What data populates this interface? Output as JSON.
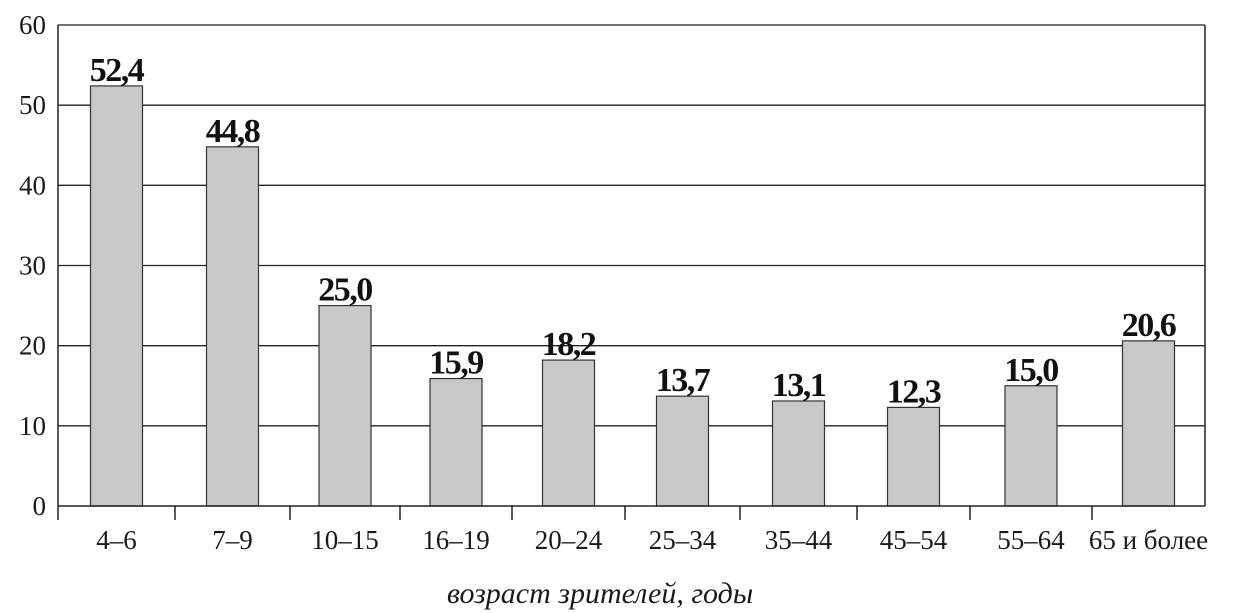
{
  "chart_data": {
    "type": "bar",
    "categories": [
      "4–6",
      "7–9",
      "10–15",
      "16–19",
      "20–24",
      "25–34",
      "35–44",
      "45–54",
      "55–64",
      "65 и более"
    ],
    "values": [
      52.4,
      44.8,
      25.0,
      15.9,
      18.2,
      13.7,
      13.1,
      12.3,
      15.0,
      20.6
    ],
    "value_labels": [
      "52,4",
      "44,8",
      "25,0",
      "15,9",
      "18,2",
      "13,7",
      "13,1",
      "12,3",
      "15,0",
      "20,6"
    ],
    "title": "",
    "xlabel": "возраст зрителей, годы",
    "ylabel": "",
    "ylim": [
      0,
      60
    ],
    "yticks": [
      0,
      10,
      20,
      30,
      40,
      50,
      60
    ],
    "grid": true,
    "legend": "none",
    "colors": {
      "bar_fill": "#c8c8c8",
      "bar_stroke": "#333333",
      "grid": "#222222"
    }
  }
}
